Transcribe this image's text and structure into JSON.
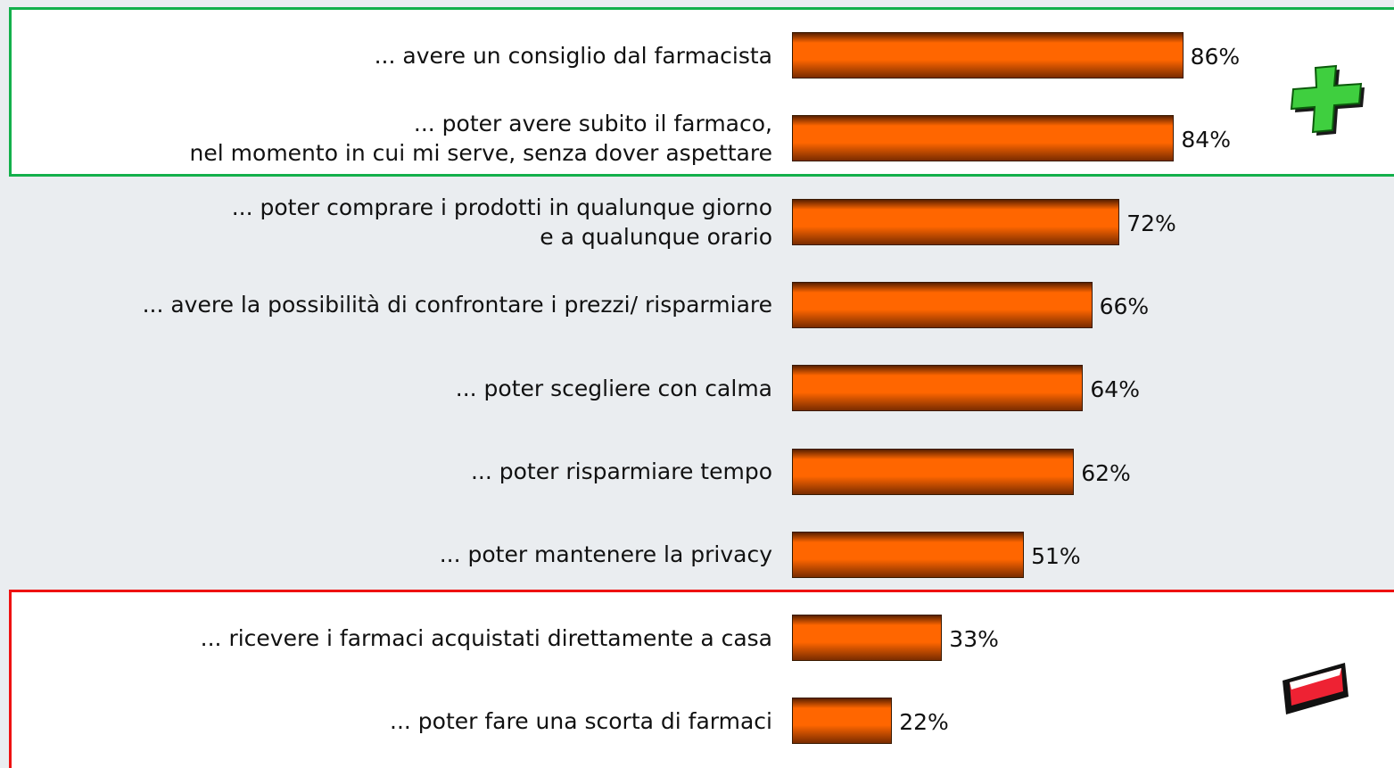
{
  "chart_data": {
    "type": "bar",
    "orientation": "horizontal",
    "categories": [
      "... avere un consiglio dal farmacista",
      "... poter avere subito il farmaco,\nnel momento in cui mi serve, senza dover aspettare",
      "... poter comprare i prodotti in qualunque giorno\ne a qualunque orario",
      "... avere la possibilità di confrontare i prezzi/ risparmiare",
      "... poter scegliere con calma",
      "... poter risparmiare tempo",
      "... poter mantenere la privacy",
      "... ricevere i farmaci acquistati direttamente a casa",
      "... poter fare una scorta di farmaci"
    ],
    "values": [
      86,
      84,
      72,
      66,
      64,
      62,
      51,
      33,
      22
    ],
    "value_labels": [
      "86%",
      "84%",
      "72%",
      "66%",
      "64%",
      "62%",
      "51%",
      "33%",
      "22%"
    ],
    "color": "#ff6600",
    "xlim": [
      0,
      100
    ]
  }
}
